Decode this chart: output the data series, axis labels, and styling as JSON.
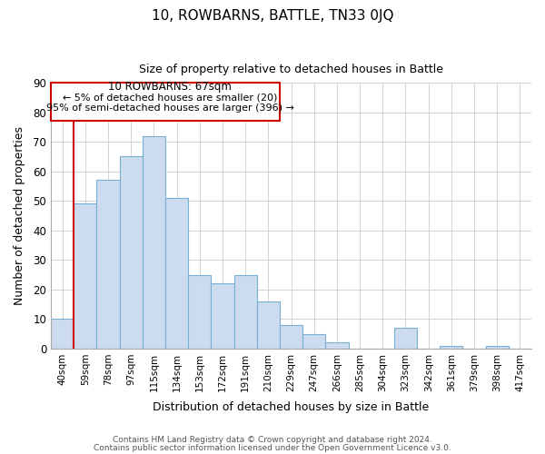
{
  "title": "10, ROWBARNS, BATTLE, TN33 0JQ",
  "subtitle": "Size of property relative to detached houses in Battle",
  "xlabel": "Distribution of detached houses by size in Battle",
  "ylabel": "Number of detached properties",
  "bar_labels": [
    "40sqm",
    "59sqm",
    "78sqm",
    "97sqm",
    "115sqm",
    "134sqm",
    "153sqm",
    "172sqm",
    "191sqm",
    "210sqm",
    "229sqm",
    "247sqm",
    "266sqm",
    "285sqm",
    "304sqm",
    "323sqm",
    "342sqm",
    "361sqm",
    "379sqm",
    "398sqm",
    "417sqm"
  ],
  "bar_values": [
    10,
    49,
    57,
    65,
    72,
    51,
    25,
    22,
    25,
    16,
    8,
    5,
    2,
    0,
    0,
    7,
    0,
    1,
    0,
    1,
    0
  ],
  "bar_color": "#ccdcee",
  "bar_edge_color": "#7aafd4",
  "grid_color": "#cccccc",
  "vline_x": 0.5,
  "vline_color": "#cc0000",
  "annotation_title": "10 ROWBARNS: 67sqm",
  "annotation_line1": "← 5% of detached houses are smaller (20)",
  "annotation_line2": "95% of semi-detached houses are larger (396) →",
  "annotation_box_color": "#ffffff",
  "annotation_box_edge": "#cc0000",
  "ylim": [
    0,
    90
  ],
  "yticks": [
    0,
    10,
    20,
    30,
    40,
    50,
    60,
    70,
    80,
    90
  ],
  "footer1": "Contains HM Land Registry data © Crown copyright and database right 2024.",
  "footer2": "Contains public sector information licensed under the Open Government Licence v3.0."
}
